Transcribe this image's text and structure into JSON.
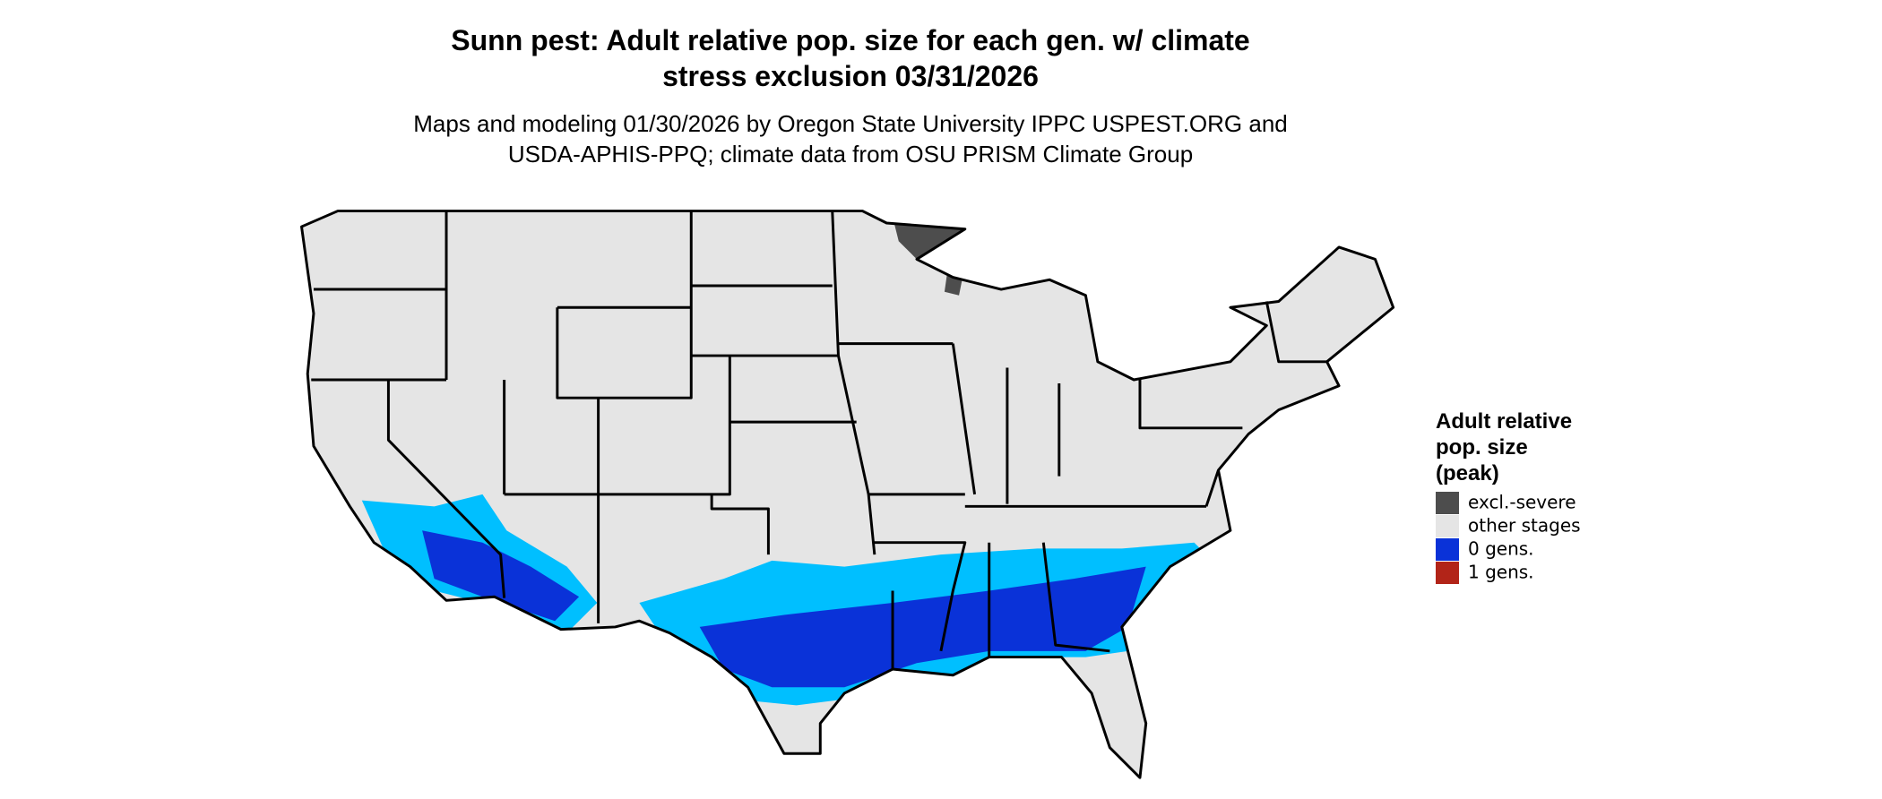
{
  "title": [
    "Sunn pest: Adult relative pop. size for each gen. w/ climate",
    "stress exclusion 03/31/2026"
  ],
  "subtitle": [
    "Maps and modeling 01/30/2026 by Oregon State University IPPC USPEST.ORG and",
    "USDA-APHIS-PPQ; climate data from OSU PRISM Climate Group"
  ],
  "legend": {
    "title": [
      "Adult relative",
      "pop. size",
      "(peak)"
    ],
    "items": [
      {
        "label": "excl.-severe",
        "color": "#4d4d4d"
      },
      {
        "label": "other stages",
        "color": "#e5e5e5"
      },
      {
        "label": "0 gens.",
        "color": "#0a32d8"
      },
      {
        "label": "1 gens.",
        "color": "#b22418"
      }
    ]
  }
}
